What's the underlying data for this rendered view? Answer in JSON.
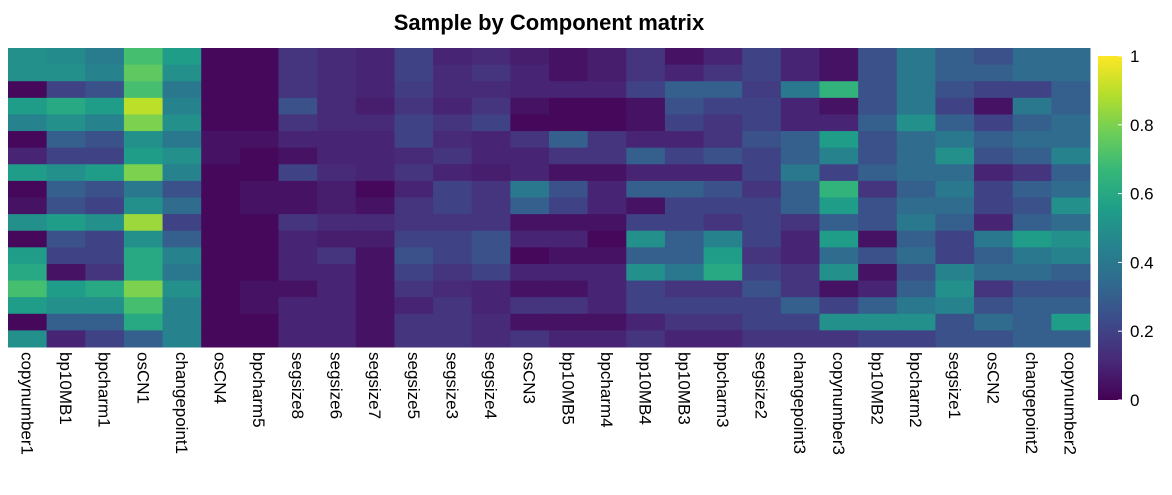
{
  "chart_data": {
    "type": "heatmap",
    "title": "Sample by Component matrix",
    "categories": [
      "copynumber1",
      "bp10MB1",
      "bpcharm1",
      "osCN1",
      "changepoint1",
      "osCN4",
      "bpcharm5",
      "segsize8",
      "segsize6",
      "segsize7",
      "segsize5",
      "segsize3",
      "segsize4",
      "osCN3",
      "bp10MB5",
      "bpcharm4",
      "bp10MB4",
      "bp10MB3",
      "bpcharm3",
      "segsize2",
      "changepoint3",
      "copynumber3",
      "bp10MB2",
      "bpcharm2",
      "segsize1",
      "osCN2",
      "changepoint2",
      "copynumber2"
    ],
    "values": [
      [
        0.5,
        0.48,
        0.42,
        0.7,
        0.55,
        0.02,
        0.02,
        0.15,
        0.12,
        0.1,
        0.2,
        0.1,
        0.12,
        0.08,
        0.05,
        0.08,
        0.15,
        0.05,
        0.1,
        0.2,
        0.1,
        0.05,
        0.25,
        0.4,
        0.3,
        0.25,
        0.35,
        0.35
      ],
      [
        0.5,
        0.5,
        0.45,
        0.75,
        0.5,
        0.02,
        0.02,
        0.15,
        0.12,
        0.1,
        0.2,
        0.12,
        0.15,
        0.1,
        0.05,
        0.08,
        0.15,
        0.1,
        0.15,
        0.2,
        0.1,
        0.05,
        0.25,
        0.4,
        0.3,
        0.3,
        0.35,
        0.35
      ],
      [
        0.02,
        0.2,
        0.25,
        0.7,
        0.4,
        0.02,
        0.02,
        0.15,
        0.12,
        0.1,
        0.18,
        0.12,
        0.12,
        0.1,
        0.1,
        0.1,
        0.2,
        0.3,
        0.3,
        0.18,
        0.4,
        0.65,
        0.25,
        0.4,
        0.25,
        0.2,
        0.2,
        0.3
      ],
      [
        0.55,
        0.6,
        0.55,
        0.9,
        0.45,
        0.02,
        0.02,
        0.25,
        0.12,
        0.08,
        0.15,
        0.1,
        0.15,
        0.05,
        0.02,
        0.02,
        0.05,
        0.25,
        0.2,
        0.2,
        0.1,
        0.05,
        0.25,
        0.4,
        0.2,
        0.05,
        0.4,
        0.3
      ],
      [
        0.45,
        0.5,
        0.45,
        0.8,
        0.5,
        0.02,
        0.02,
        0.15,
        0.12,
        0.12,
        0.2,
        0.15,
        0.2,
        0.02,
        0.02,
        0.02,
        0.05,
        0.2,
        0.15,
        0.2,
        0.1,
        0.1,
        0.3,
        0.5,
        0.3,
        0.2,
        0.3,
        0.35
      ],
      [
        0.02,
        0.3,
        0.25,
        0.5,
        0.4,
        0.05,
        0.05,
        0.1,
        0.1,
        0.1,
        0.2,
        0.12,
        0.1,
        0.15,
        0.3,
        0.15,
        0.1,
        0.1,
        0.15,
        0.25,
        0.3,
        0.55,
        0.25,
        0.35,
        0.4,
        0.3,
        0.35,
        0.35
      ],
      [
        0.1,
        0.2,
        0.2,
        0.55,
        0.5,
        0.05,
        0.02,
        0.05,
        0.1,
        0.1,
        0.12,
        0.15,
        0.1,
        0.1,
        0.15,
        0.15,
        0.3,
        0.2,
        0.25,
        0.2,
        0.3,
        0.45,
        0.25,
        0.35,
        0.5,
        0.25,
        0.3,
        0.45
      ],
      [
        0.55,
        0.5,
        0.55,
        0.8,
        0.45,
        0.02,
        0.02,
        0.2,
        0.12,
        0.1,
        0.15,
        0.1,
        0.08,
        0.1,
        0.05,
        0.05,
        0.1,
        0.1,
        0.1,
        0.2,
        0.4,
        0.2,
        0.3,
        0.35,
        0.35,
        0.1,
        0.15,
        0.3
      ],
      [
        0.02,
        0.3,
        0.25,
        0.4,
        0.25,
        0.02,
        0.05,
        0.05,
        0.08,
        0.02,
        0.1,
        0.2,
        0.15,
        0.4,
        0.25,
        0.1,
        0.3,
        0.3,
        0.25,
        0.15,
        0.3,
        0.65,
        0.15,
        0.3,
        0.4,
        0.2,
        0.3,
        0.35
      ],
      [
        0.05,
        0.25,
        0.2,
        0.5,
        0.35,
        0.02,
        0.05,
        0.05,
        0.08,
        0.05,
        0.15,
        0.2,
        0.15,
        0.3,
        0.2,
        0.1,
        0.05,
        0.2,
        0.2,
        0.2,
        0.3,
        0.55,
        0.25,
        0.35,
        0.35,
        0.2,
        0.25,
        0.5
      ],
      [
        0.5,
        0.55,
        0.5,
        0.85,
        0.2,
        0.02,
        0.02,
        0.15,
        0.12,
        0.12,
        0.15,
        0.15,
        0.15,
        0.05,
        0.05,
        0.05,
        0.2,
        0.2,
        0.15,
        0.2,
        0.15,
        0.3,
        0.25,
        0.4,
        0.3,
        0.1,
        0.3,
        0.35
      ],
      [
        0.02,
        0.25,
        0.2,
        0.5,
        0.3,
        0.02,
        0.02,
        0.1,
        0.08,
        0.08,
        0.2,
        0.2,
        0.25,
        0.1,
        0.1,
        0.02,
        0.5,
        0.3,
        0.45,
        0.2,
        0.1,
        0.55,
        0.05,
        0.3,
        0.2,
        0.4,
        0.55,
        0.5
      ],
      [
        0.55,
        0.2,
        0.2,
        0.6,
        0.45,
        0.02,
        0.02,
        0.1,
        0.15,
        0.05,
        0.25,
        0.2,
        0.25,
        0.02,
        0.05,
        0.05,
        0.3,
        0.3,
        0.55,
        0.15,
        0.1,
        0.35,
        0.25,
        0.35,
        0.2,
        0.3,
        0.4,
        0.45
      ],
      [
        0.6,
        0.05,
        0.15,
        0.6,
        0.4,
        0.02,
        0.02,
        0.1,
        0.1,
        0.05,
        0.2,
        0.15,
        0.2,
        0.1,
        0.1,
        0.1,
        0.5,
        0.4,
        0.6,
        0.2,
        0.15,
        0.5,
        0.05,
        0.25,
        0.45,
        0.35,
        0.35,
        0.3
      ],
      [
        0.7,
        0.55,
        0.6,
        0.8,
        0.5,
        0.02,
        0.05,
        0.05,
        0.1,
        0.05,
        0.15,
        0.12,
        0.1,
        0.05,
        0.05,
        0.1,
        0.2,
        0.15,
        0.15,
        0.25,
        0.15,
        0.05,
        0.1,
        0.3,
        0.5,
        0.15,
        0.25,
        0.25
      ],
      [
        0.55,
        0.5,
        0.5,
        0.7,
        0.45,
        0.02,
        0.05,
        0.1,
        0.1,
        0.05,
        0.1,
        0.15,
        0.1,
        0.15,
        0.15,
        0.1,
        0.2,
        0.2,
        0.2,
        0.2,
        0.3,
        0.2,
        0.3,
        0.4,
        0.45,
        0.25,
        0.3,
        0.3
      ],
      [
        0.02,
        0.3,
        0.3,
        0.6,
        0.45,
        0.02,
        0.02,
        0.1,
        0.1,
        0.05,
        0.15,
        0.15,
        0.12,
        0.05,
        0.05,
        0.05,
        0.1,
        0.15,
        0.15,
        0.2,
        0.2,
        0.5,
        0.5,
        0.5,
        0.25,
        0.35,
        0.3,
        0.55
      ],
      [
        0.5,
        0.1,
        0.2,
        0.3,
        0.45,
        0.02,
        0.02,
        0.1,
        0.1,
        0.05,
        0.15,
        0.15,
        0.12,
        0.15,
        0.1,
        0.1,
        0.15,
        0.1,
        0.1,
        0.15,
        0.15,
        0.15,
        0.2,
        0.2,
        0.25,
        0.25,
        0.3,
        0.3
      ]
    ],
    "colorbar_lim": [
      0,
      1
    ],
    "colorbar_ticks": [
      0,
      0.2,
      0.4,
      0.6,
      0.8,
      1
    ],
    "colormap": [
      "#440154",
      "#482878",
      "#3e4989",
      "#31688e",
      "#26828e",
      "#1f9e89",
      "#35b779",
      "#6ece58",
      "#b5de2b",
      "#fde725"
    ]
  }
}
